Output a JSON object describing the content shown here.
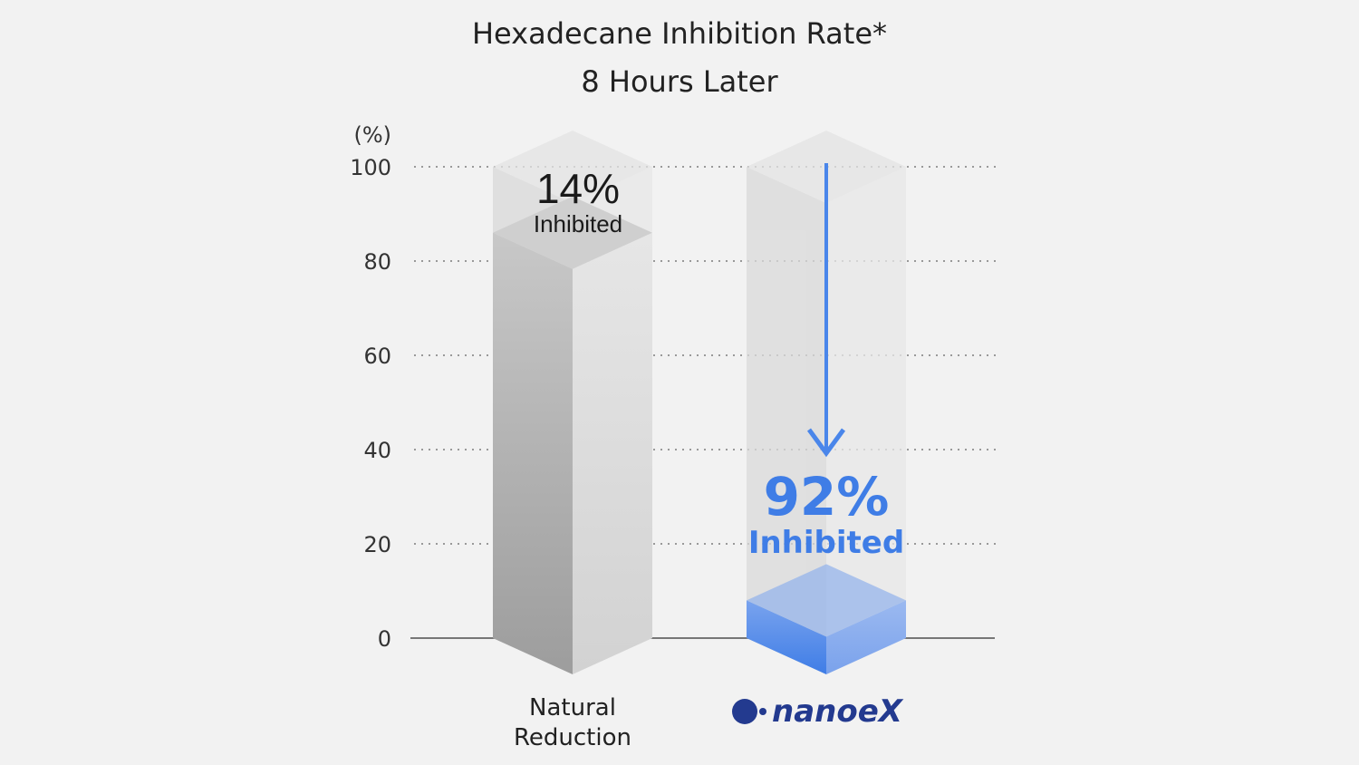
{
  "chart_data": {
    "type": "bar",
    "title": "Hexadecane Inhibition Rate*",
    "subtitle": "8 Hours Later",
    "ylabel": "(%)",
    "ylim": [
      0,
      100
    ],
    "yticks": [
      "0",
      "20",
      "40",
      "60",
      "80",
      "100"
    ],
    "grid": true,
    "categories": [
      "Natural Reduction",
      "nanoeX"
    ],
    "values": [
      86,
      8
    ],
    "annotations": [
      {
        "value": "14%",
        "text": "Inhibited"
      },
      {
        "value": "92%",
        "text": "Inhibited"
      }
    ],
    "colors": {
      "natural": "#b5b5b5",
      "nanoe": "#4a86ea",
      "logo": "#233a8f"
    }
  }
}
